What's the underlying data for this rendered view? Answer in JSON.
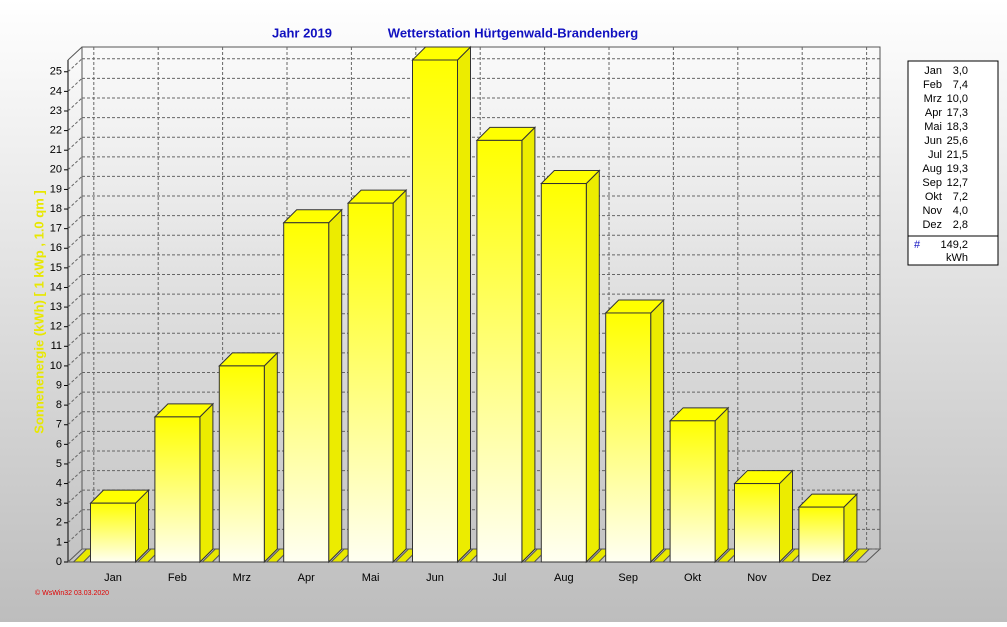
{
  "chart_data": {
    "type": "bar",
    "title": "Jahr  2019",
    "subtitle": "Wetterstation Hürtgenwald-Brandenberg",
    "y_label": "Sonnenenergie (kWh)   [ 1 kWp , 1.0 qm ]",
    "categories": [
      "Jan",
      "Feb",
      "Mrz",
      "Apr",
      "Mai",
      "Jun",
      "Jul",
      "Aug",
      "Sep",
      "Okt",
      "Nov",
      "Dez"
    ],
    "values": [
      3.0,
      7.4,
      10.0,
      17.3,
      18.3,
      25.6,
      21.5,
      19.3,
      12.7,
      7.2,
      4.0,
      2.8
    ],
    "value_labels": [
      "3,0",
      "7,4",
      "10,0",
      "17,3",
      "18,3",
      "25,6",
      "21,5",
      "19,3",
      "12,7",
      "7,2",
      "4,0",
      "2,8"
    ],
    "color": "#ffff00",
    "ylim": [
      0,
      25.6
    ],
    "yticks": [
      0,
      1,
      2,
      3,
      4,
      5,
      6,
      7,
      8,
      9,
      10,
      11,
      12,
      13,
      14,
      15,
      16,
      17,
      18,
      19,
      20,
      21,
      22,
      23,
      24,
      25
    ],
    "grid": true,
    "legend_total": {
      "symbol": "#",
      "label": "149,2",
      "unit": "kWh"
    },
    "footer": "© WsWin32  03.03.2020"
  }
}
